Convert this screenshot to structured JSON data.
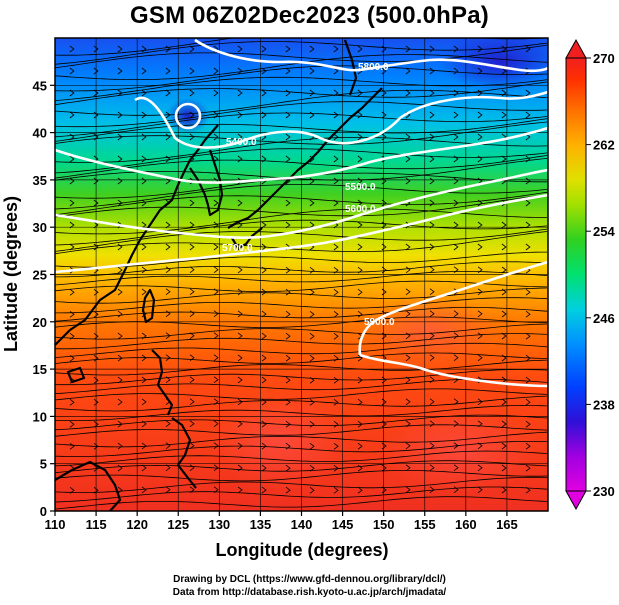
{
  "title": "GSM 06Z02Dec2023 (500.0hPa)",
  "footer": {
    "line1": "Drawing by DCL (https://www.gfd-dennou.org/library/dcl/)",
    "line2": "Data from http://database.rish.kyoto-u.ac.jp/arch/jmadata/"
  },
  "chart_data": {
    "type": "heatmap",
    "xlabel": "Longitude (degrees)",
    "ylabel": "Latitude  (degrees)",
    "xlim": [
      110,
      170
    ],
    "ylim": [
      0,
      50
    ],
    "x_ticks": [
      "110",
      "115",
      "120",
      "125",
      "130",
      "135",
      "140",
      "145",
      "150",
      "155",
      "160",
      "165"
    ],
    "y_ticks": [
      "0",
      "5",
      "10",
      "15",
      "20",
      "25",
      "30",
      "35",
      "40",
      "45"
    ],
    "grid": true,
    "colorbar": {
      "min": 230,
      "max": 270,
      "ticks": [
        "230",
        "238",
        "246",
        "254",
        "262",
        "270"
      ],
      "colors": [
        "#e000e0",
        "#a000e0",
        "#2000d8",
        "#0040ff",
        "#0090ff",
        "#00d0e0",
        "#00e070",
        "#30d020",
        "#a0e000",
        "#e0e000",
        "#ffb000",
        "#ff7000",
        "#ff3000",
        "#f02020"
      ]
    },
    "contours": [
      {
        "label": "5400.0"
      },
      {
        "label": "5500.0"
      },
      {
        "label": "5600.0"
      },
      {
        "label": "5700.0"
      },
      {
        "label": "5800.0"
      },
      {
        "label": "5900.0"
      }
    ]
  }
}
